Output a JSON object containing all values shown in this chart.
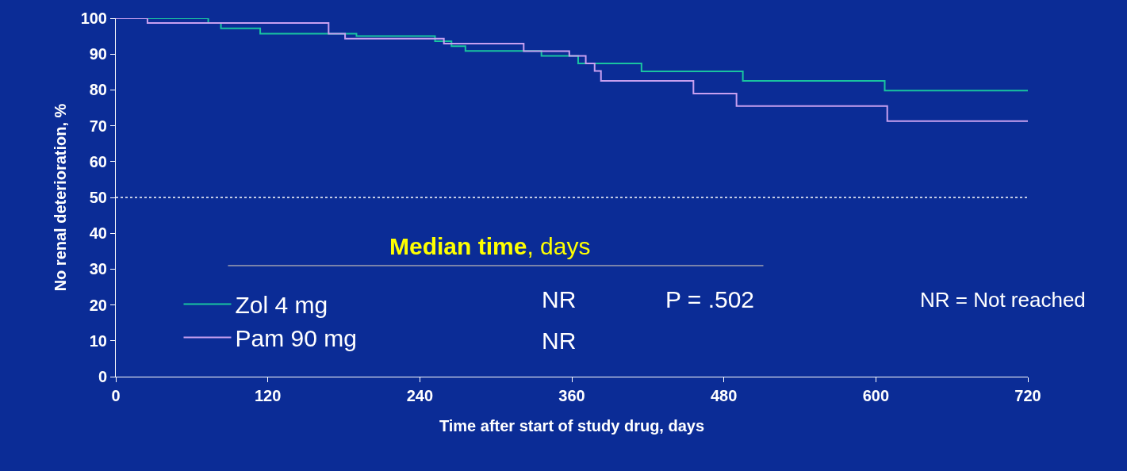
{
  "chart_data": {
    "type": "step",
    "xlabel": "Time after start of study drug, days",
    "ylabel": "No renal deterioration, %",
    "xlim": [
      0,
      720
    ],
    "xticks": [
      0,
      120,
      240,
      360,
      480,
      600,
      720
    ],
    "ylim": [
      0,
      100
    ],
    "yticks": [
      0,
      10,
      20,
      30,
      40,
      50,
      60,
      70,
      80,
      90,
      100
    ],
    "grid": false,
    "legend": "bottom left",
    "marker": "none",
    "line_style": "solid",
    "series": [
      {
        "name": "Zol 4 mg",
        "color": "#19c4a0",
        "x": [
          0,
          73,
          83,
          114,
          190,
          252,
          265,
          276,
          336,
          365,
          415,
          495,
          607,
          720
        ],
        "values": [
          100,
          98.7,
          97.2,
          95.7,
          95,
          93.6,
          92.2,
          90.9,
          89.5,
          87.4,
          85.2,
          82.5,
          79.8,
          79.8
        ]
      },
      {
        "name": "Pam 90 mg",
        "color": "#c8a0f0",
        "x": [
          0,
          25,
          168,
          181,
          259,
          322,
          358,
          371,
          378,
          383,
          456,
          490,
          609,
          720
        ],
        "values": [
          100,
          98.7,
          95.7,
          94.3,
          92.9,
          90.8,
          89.5,
          87.4,
          85.3,
          82.5,
          79,
          75.5,
          71.3,
          71.3
        ]
      }
    ],
    "ref_lines": [
      {
        "axis": "y",
        "value": 50,
        "color": "#ffffff",
        "line_style": "dotted"
      }
    ],
    "annotations": [
      "Median time, days",
      "NR",
      "NR",
      "P = .502",
      "NR = Not reached"
    ]
  }
}
